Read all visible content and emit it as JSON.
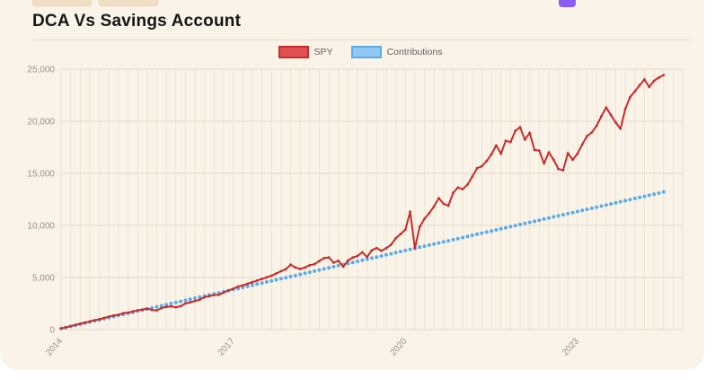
{
  "page": {
    "title": "DCA Vs Savings Account",
    "background_color": "#faf3e8",
    "accent_purple": "#8b5cf6"
  },
  "chart_data": {
    "type": "line",
    "title": "DCA Vs Savings Account",
    "xlabel": "",
    "ylabel": "",
    "ylim": [
      0,
      25000
    ],
    "grid": "on",
    "legend_position": "top-center",
    "legend": [
      {
        "label": "SPY",
        "color": "#c92b2b",
        "fill": "#e05252"
      },
      {
        "label": "Contributions",
        "color": "#5aabe8",
        "fill": "#8ec7ef"
      }
    ],
    "y_ticks": [
      0,
      5000,
      10000,
      15000,
      20000,
      25000
    ],
    "x_tick_labels": [
      "2014",
      "2017",
      "2020",
      "2023"
    ],
    "x_year_ticks": [
      {
        "label": "2014",
        "month_index": 0
      },
      {
        "label": "2017",
        "month_index": 36
      },
      {
        "label": "2020",
        "month_index": 72
      },
      {
        "label": "2023",
        "month_index": 108
      }
    ],
    "x_start": "2014-01",
    "x_end": "2024-07",
    "series": [
      {
        "name": "SPY",
        "color": "#c92b2b",
        "style": "line-with-points",
        "values": [
          105,
          215,
          330,
          445,
          560,
          670,
          785,
          900,
          995,
          1120,
          1245,
          1350,
          1420,
          1580,
          1630,
          1745,
          1855,
          1905,
          2025,
          1890,
          1845,
          2070,
          2185,
          2230,
          2150,
          2245,
          2505,
          2625,
          2745,
          2875,
          3105,
          3215,
          3315,
          3345,
          3555,
          3755,
          3925,
          4135,
          4245,
          4395,
          4555,
          4705,
          4865,
          5015,
          5175,
          5385,
          5605,
          5795,
          6235,
          5965,
          5825,
          5955,
          6185,
          6285,
          6575,
          6865,
          6935,
          6425,
          6605,
          6035,
          6640,
          6915,
          7075,
          7425,
          6965,
          7625,
          7825,
          7565,
          7815,
          8145,
          8765,
          9175,
          9590,
          11320,
          7810,
          9850,
          10650,
          11180,
          11830,
          12620,
          12080,
          11890,
          13130,
          13640,
          13480,
          13920,
          14690,
          15490,
          15680,
          16180,
          16830,
          17680,
          16890,
          18120,
          18010,
          19080,
          19420,
          18230,
          18890,
          17250,
          17180,
          15950,
          17010,
          16310,
          15420,
          15290,
          16930,
          16300,
          16890,
          17780,
          18580,
          18930,
          19560,
          20480,
          21320,
          20590,
          19870,
          19280,
          21180,
          22310,
          22880,
          23460,
          24010,
          23290,
          23880,
          24190,
          24430
        ]
      },
      {
        "name": "Contributions",
        "color": "#5aabe8",
        "style": "dotted-points",
        "values": [
          104,
          208,
          312,
          416,
          520,
          624,
          728,
          832,
          936,
          1040,
          1144,
          1248,
          1352,
          1456,
          1560,
          1664,
          1768,
          1872,
          1976,
          2080,
          2184,
          2288,
          2392,
          2496,
          2600,
          2704,
          2808,
          2912,
          3016,
          3120,
          3224,
          3328,
          3432,
          3536,
          3640,
          3744,
          3848,
          3952,
          4056,
          4160,
          4264,
          4368,
          4472,
          4576,
          4680,
          4784,
          4888,
          4992,
          5096,
          5200,
          5304,
          5408,
          5512,
          5616,
          5720,
          5824,
          5928,
          6032,
          6136,
          6240,
          6344,
          6448,
          6552,
          6656,
          6760,
          6864,
          6968,
          7072,
          7176,
          7280,
          7384,
          7488,
          7592,
          7696,
          7800,
          7904,
          8008,
          8112,
          8216,
          8320,
          8424,
          8528,
          8632,
          8736,
          8840,
          8944,
          9048,
          9152,
          9256,
          9360,
          9464,
          9568,
          9672,
          9776,
          9880,
          9984,
          10088,
          10192,
          10296,
          10400,
          10504,
          10608,
          10712,
          10816,
          10920,
          11024,
          11128,
          11232,
          11336,
          11440,
          11544,
          11648,
          11752,
          11856,
          11960,
          12064,
          12168,
          12272,
          12376,
          12480,
          12584,
          12688,
          12792,
          12896,
          13000,
          13104,
          13208
        ]
      }
    ]
  }
}
